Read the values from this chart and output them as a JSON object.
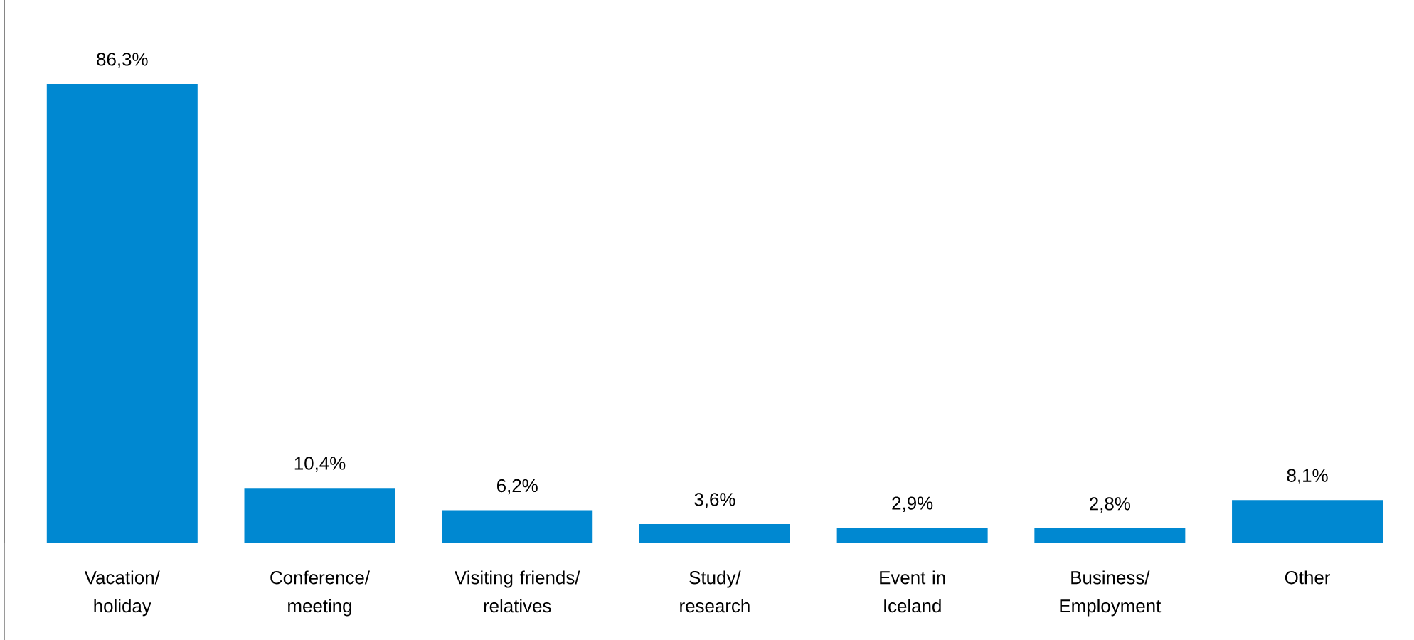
{
  "chart_data": {
    "type": "bar",
    "categories": [
      "Vacation/ holiday",
      "Conference/ meeting",
      "Visiting friends/ relatives",
      "Study/ research",
      "Event in Iceland",
      "Business/ Employment",
      "Other"
    ],
    "values": [
      86.3,
      10.4,
      6.2,
      3.6,
      2.9,
      2.8,
      8.1
    ],
    "value_labels": [
      "86,3%",
      "10,4%",
      "6,2%",
      "3,6%",
      "2,9%",
      "2,8%",
      "8,1%"
    ],
    "color": "#0088d1"
  }
}
